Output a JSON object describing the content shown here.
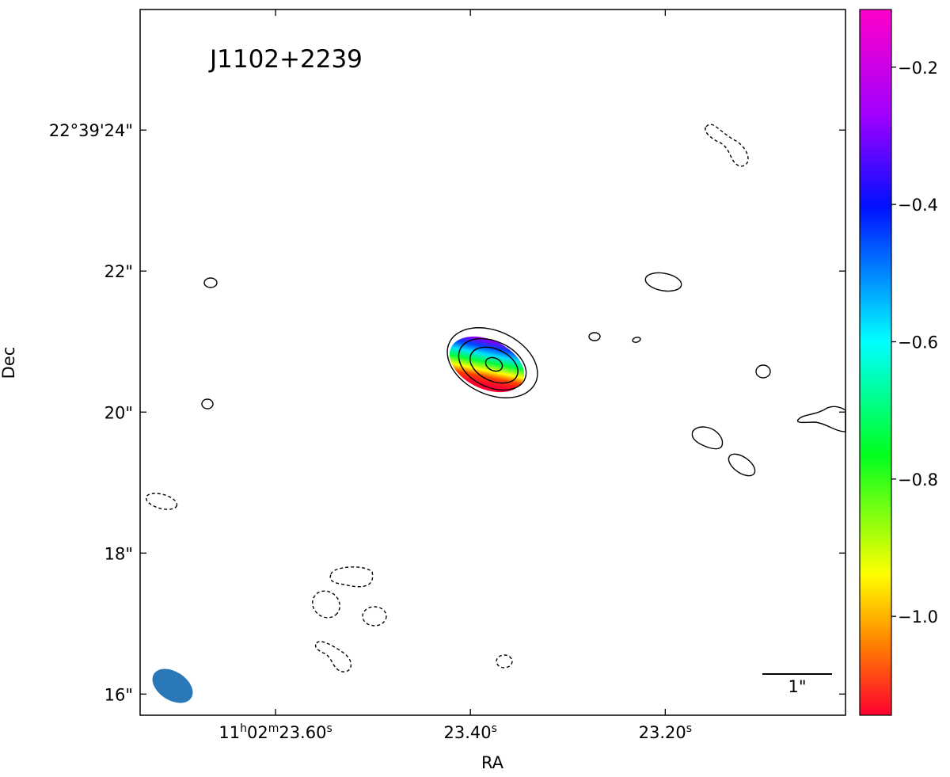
{
  "chart_data": {
    "type": "image",
    "title": "J1102+2239",
    "xlabel": "RA",
    "ylabel": "Dec",
    "xlim": [
      23.739,
      23.015
    ],
    "xticks": [
      {
        "value": 23.6,
        "label": "11h02m23.60s"
      },
      {
        "value": 23.4,
        "label": "23.40s"
      },
      {
        "value": 23.2,
        "label": "23.20s"
      }
    ],
    "ylim": [
      15.7,
      25.71
    ],
    "yticks": [
      {
        "value": 16,
        "label": "16\""
      },
      {
        "value": 18,
        "label": "18\""
      },
      {
        "value": 20,
        "label": "20\""
      },
      {
        "value": 22,
        "label": "22\""
      },
      {
        "value": 24,
        "label": "22°39'24\""
      }
    ],
    "colorbar": {
      "lim": [
        -1.144,
        -0.116
      ],
      "ticks": [
        {
          "value": -1.0,
          "label": "−1.0"
        },
        {
          "value": -0.8,
          "label": "−0.8"
        },
        {
          "value": -0.6,
          "label": "−0.6"
        },
        {
          "value": -0.4,
          "label": "−0.4"
        },
        {
          "value": -0.2,
          "label": "−0.2"
        }
      ]
    },
    "scale_bar_label": "1\""
  }
}
